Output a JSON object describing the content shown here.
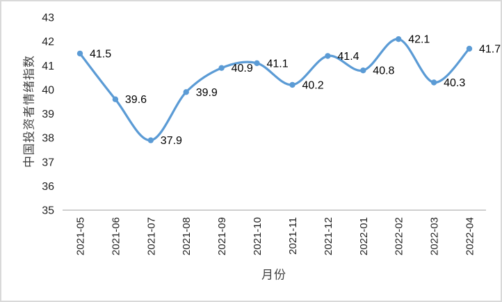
{
  "chart": {
    "background": "#FFFFFF",
    "border_color": "#D9D9D9"
  },
  "chart_data": {
    "type": "line",
    "title": "",
    "xlabel": "月份",
    "ylabel": "中国投资者情绪指数",
    "categories": [
      "2021-05",
      "2021-06",
      "2021-07",
      "2021-08",
      "2021-09",
      "2021-10",
      "2021-11",
      "2021-12",
      "2022-01",
      "2022-02",
      "2022-03",
      "2022-04"
    ],
    "values": [
      41.5,
      39.6,
      37.9,
      39.9,
      40.9,
      41.1,
      40.2,
      41.4,
      40.8,
      42.1,
      40.3,
      41.7
    ],
    "point_labels": [
      "41.5",
      "39.6",
      "37.9",
      "39.9",
      "40.9",
      "41.1",
      "40.2",
      "41.4",
      "40.8",
      "42.1",
      "40.3",
      "41.7"
    ],
    "ylim": [
      35,
      43
    ],
    "yticks": [
      35,
      36,
      37,
      38,
      39,
      40,
      41,
      42,
      43
    ],
    "grid": false,
    "legend": "none",
    "smooth_line": true,
    "show_markers": true,
    "show_data_labels": true,
    "data_label_position": "right",
    "x_label_rotation_deg": -90,
    "line_color": "#5B9BD5",
    "marker_color": "#5B9BD5",
    "axis_line_color": "#BFBFBF",
    "tick_text_color": "#1F1F1F",
    "axis_title_color": "#404040"
  }
}
